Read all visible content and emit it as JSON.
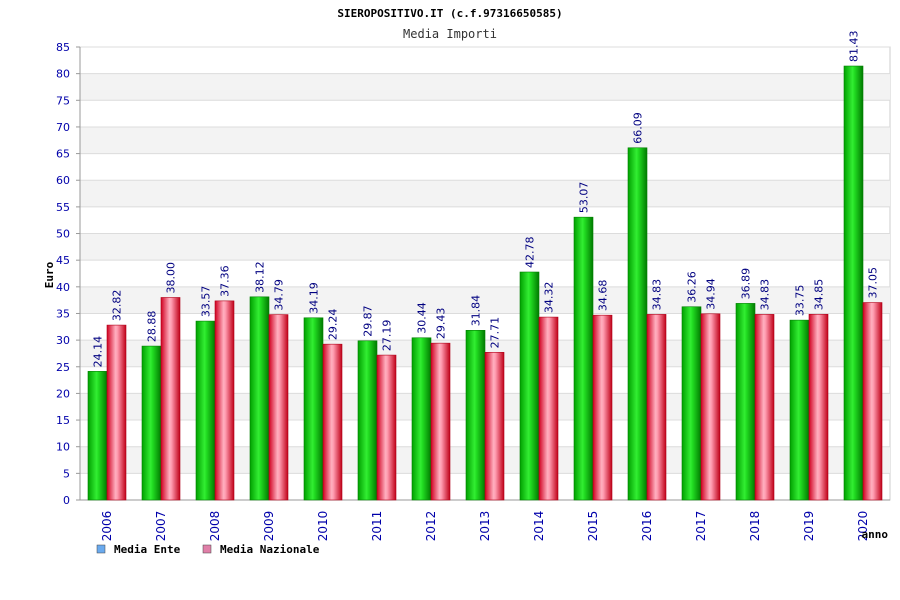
{
  "chart_data": {
    "type": "bar",
    "title": "SIEROPOSITIVO.IT (c.f.97316650585)",
    "subtitle": "Media Importi",
    "xlabel": "anno",
    "ylabel": "Euro",
    "ylim": [
      0,
      85
    ],
    "ytick_step": 5,
    "grid": true,
    "legend_position": "bottom-left",
    "categories": [
      "2006",
      "2007",
      "2008",
      "2009",
      "2010",
      "2011",
      "2012",
      "2013",
      "2014",
      "2015",
      "2016",
      "2017",
      "2018",
      "2019",
      "2020"
    ],
    "series": [
      {
        "name": "Media Ente",
        "color": "#00b000",
        "legend_color": "#6aaaee",
        "values": [
          24.14,
          28.88,
          33.57,
          38.12,
          34.19,
          29.87,
          30.44,
          31.84,
          42.78,
          53.07,
          66.09,
          36.26,
          36.89,
          33.75,
          81.43
        ],
        "labels": [
          "24.14",
          "28.88",
          "33.57",
          "38.12",
          "34.19",
          "29.87",
          "30.44",
          "31.84",
          "42.78",
          "53.07",
          "66.09",
          "36.26",
          "36.89",
          "33.75",
          "81.43"
        ]
      },
      {
        "name": "Media Nazionale",
        "color": "#e01030",
        "legend_color": "#e07fa8",
        "values": [
          32.82,
          38.0,
          37.36,
          34.79,
          29.24,
          27.19,
          29.43,
          27.71,
          34.32,
          34.68,
          34.83,
          34.94,
          34.83,
          34.85,
          37.05
        ],
        "labels": [
          "32.82",
          "38.00",
          "37.36",
          "34.79",
          "29.24",
          "27.19",
          "29.43",
          "27.71",
          "34.32",
          "34.68",
          "34.83",
          "34.94",
          "34.83",
          "34.85",
          "37.05"
        ]
      }
    ]
  },
  "colors": {
    "axis_text": "#0000aa",
    "label_text": "#000080",
    "grid_band": "#f3f3f3",
    "grid_line": "#dcdcdc"
  }
}
